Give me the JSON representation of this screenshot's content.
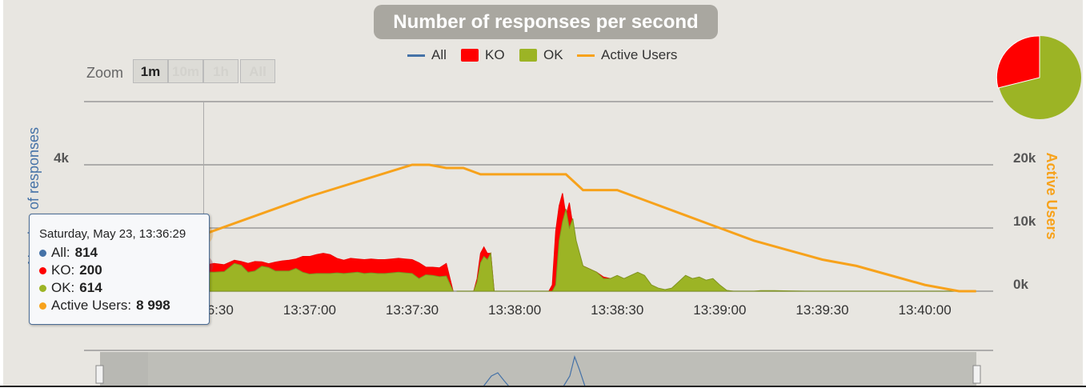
{
  "title": "Number of responses per second",
  "legend": [
    {
      "label": "All",
      "color": "#4572a7",
      "kind": "line"
    },
    {
      "label": "KO",
      "color": "#ff0000",
      "kind": "box"
    },
    {
      "label": "OK",
      "color": "#9cb425",
      "kind": "box"
    },
    {
      "label": "Active Users",
      "color": "#f7a21b",
      "kind": "line"
    }
  ],
  "zoom": {
    "label": "Zoom",
    "buttons": [
      "1m",
      "10m",
      "1h",
      "All"
    ],
    "active": "1m"
  },
  "tooltip": {
    "date": "Saturday, May 23, 13:36:29",
    "rows": [
      {
        "label": "All:",
        "value": "814",
        "color": "#4572a7"
      },
      {
        "label": "KO:",
        "value": "200",
        "color": "#ff0000"
      },
      {
        "label": "OK:",
        "value": "614",
        "color": "#9cb425"
      },
      {
        "label": "Active Users:",
        "value": "8 998",
        "color": "#f7a21b"
      }
    ]
  },
  "chart_data": {
    "type": "area",
    "title": "Number of responses per second",
    "ylabel_left": "Number of responses",
    "ylabel_right": "Active Users",
    "x_unit": "seconds after 13:36:00 (May 23)",
    "x_tick_labels": [
      "13:36:30",
      "13:37:00",
      "13:37:30",
      "13:38:00",
      "13:38:30",
      "13:39:00",
      "13:39:30",
      "13:40:00"
    ],
    "x_tick_values": [
      30,
      60,
      90,
      120,
      150,
      180,
      210,
      240
    ],
    "left_ticks": [
      {
        "v": 2000,
        "label": "2k"
      },
      {
        "v": 4000,
        "label": "4k"
      }
    ],
    "right_ticks": [
      {
        "v": 0,
        "label": "0k"
      },
      {
        "v": 10000,
        "label": "10k"
      },
      {
        "v": 20000,
        "label": "20k"
      }
    ],
    "left_ylim": [
      0,
      6000
    ],
    "right_ylim": [
      0,
      30000
    ],
    "xlim": [
      -6,
      260
    ],
    "crosshair_x": 29,
    "series": [
      {
        "name": "OK",
        "color": "#9cb425",
        "x": [
          2,
          6,
          10,
          14,
          18,
          22,
          26,
          29,
          32,
          35,
          38,
          40,
          42,
          44,
          46,
          48,
          50,
          52,
          54,
          56,
          58,
          60,
          62,
          64,
          66,
          68,
          70,
          72,
          74,
          76,
          78,
          80,
          82,
          84,
          86,
          88,
          90,
          92,
          94,
          96,
          98,
          100,
          102,
          104,
          105,
          106,
          107,
          108,
          109,
          110,
          111,
          112,
          113,
          114,
          115,
          116,
          117,
          118,
          119,
          120,
          121,
          122,
          123,
          124,
          125,
          126,
          127,
          128,
          129,
          130,
          131,
          132,
          133,
          134,
          135,
          136,
          137,
          138,
          140,
          142,
          144,
          146,
          148,
          150,
          152,
          154,
          156,
          158,
          160,
          162,
          164,
          166,
          168,
          170,
          172,
          174,
          176,
          178,
          180,
          182,
          184,
          186,
          188,
          190,
          192,
          194,
          196,
          198,
          200,
          205,
          210,
          215,
          220,
          225,
          230,
          235,
          240,
          245,
          250,
          255
        ],
        "values": [
          380,
          420,
          500,
          560,
          600,
          620,
          610,
          614,
          600,
          620,
          880,
          820,
          600,
          640,
          790,
          750,
          640,
          640,
          640,
          720,
          600,
          540,
          560,
          560,
          560,
          580,
          560,
          580,
          600,
          560,
          580,
          560,
          560,
          580,
          600,
          580,
          560,
          400,
          520,
          500,
          460,
          480,
          0,
          0,
          0,
          0,
          0,
          0,
          0,
          0,
          0,
          0,
          0,
          0,
          0,
          0,
          0,
          0,
          0,
          0,
          0,
          0,
          0,
          0,
          0,
          0,
          0,
          0,
          0,
          0,
          0,
          0,
          0,
          0,
          0,
          0,
          0,
          0,
          0,
          0,
          0,
          0,
          0,
          0,
          0,
          0,
          0,
          0,
          0,
          0,
          0,
          0,
          0,
          0,
          0,
          0,
          0,
          0,
          0,
          0,
          0,
          0,
          0,
          0,
          0,
          0,
          0,
          0,
          0,
          0,
          0,
          0,
          0,
          0,
          0,
          0,
          0,
          0,
          0,
          0
        ]
      },
      {
        "name": "KO",
        "color": "#ff0000",
        "x": [
          2,
          6,
          10,
          14,
          18,
          22,
          26,
          29,
          32,
          35,
          38,
          40,
          42,
          44,
          46,
          48,
          50,
          52,
          54,
          56,
          58,
          60,
          62,
          64,
          66,
          68,
          70,
          72,
          74,
          76,
          78,
          80,
          82,
          84,
          86,
          88,
          90,
          92,
          94,
          96,
          98,
          100,
          102
        ],
        "values": [
          0,
          0,
          0,
          20,
          60,
          120,
          180,
          200,
          280,
          220,
          100,
          120,
          280,
          300,
          140,
          120,
          280,
          320,
          340,
          300,
          500,
          560,
          600,
          640,
          600,
          460,
          420,
          460,
          420,
          440,
          440,
          440,
          440,
          440,
          440,
          440,
          440,
          500,
          240,
          260,
          280,
          400,
          0
        ]
      }
    ],
    "ok_later": {
      "x": [
        103,
        104,
        105,
        106,
        107,
        108,
        109,
        110,
        111,
        112,
        113,
        114,
        115,
        116,
        117,
        118,
        119,
        120,
        121,
        122,
        123,
        124,
        125,
        126,
        127,
        128,
        129,
        130,
        131,
        132,
        133,
        134,
        135,
        136,
        137,
        138,
        140,
        142,
        144,
        146,
        148,
        150,
        152,
        154,
        156,
        158,
        160,
        162,
        164,
        166,
        168,
        170,
        172,
        174,
        176,
        178,
        180,
        182,
        184,
        186,
        188,
        190,
        192,
        196,
        200,
        205,
        210,
        215,
        220,
        225,
        230,
        235,
        240,
        245,
        250,
        255
      ],
      "values": [
        0,
        0,
        0,
        0,
        0,
        0,
        300,
        900,
        1100,
        1000,
        1200,
        0,
        0,
        0,
        0,
        0,
        0,
        0,
        0,
        0,
        0,
        0,
        0,
        0,
        0,
        0,
        0,
        0,
        0,
        200,
        1600,
        2200,
        2600,
        2000,
        2300,
        1600,
        800,
        700,
        600,
        400,
        400,
        500,
        400,
        500,
        600,
        500,
        200,
        100,
        50,
        100,
        300,
        500,
        400,
        450,
        350,
        400,
        200,
        30,
        0,
        0,
        0,
        0,
        20,
        20,
        10,
        0,
        0,
        0,
        0,
        0,
        0,
        0,
        0,
        0,
        0,
        0
      ]
    },
    "ko_later": {
      "x": [
        108,
        109,
        110,
        111,
        112,
        113,
        114,
        115,
        130,
        131,
        132,
        133,
        134,
        135,
        136,
        137,
        138,
        139,
        140,
        142,
        144,
        146,
        148
      ],
      "values": [
        0,
        400,
        1200,
        1400,
        1200,
        1200,
        0,
        0,
        0,
        200,
        1900,
        2700,
        3100,
        2400,
        2800,
        2100,
        1200,
        1000,
        800,
        700,
        600,
        450,
        400
      ]
    },
    "active_users": {
      "x": [
        -5,
        29,
        60,
        90,
        95,
        100,
        105,
        110,
        120,
        125,
        135,
        140,
        150,
        160,
        170,
        180,
        190,
        200,
        210,
        220,
        230,
        240,
        250,
        255
      ],
      "values": [
        1200,
        8998,
        15000,
        20000,
        20000,
        19500,
        19500,
        18500,
        18500,
        18500,
        18500,
        16000,
        16000,
        14000,
        12000,
        10000,
        8000,
        6500,
        5000,
        4000,
        2500,
        1000,
        0,
        0
      ]
    }
  }
}
